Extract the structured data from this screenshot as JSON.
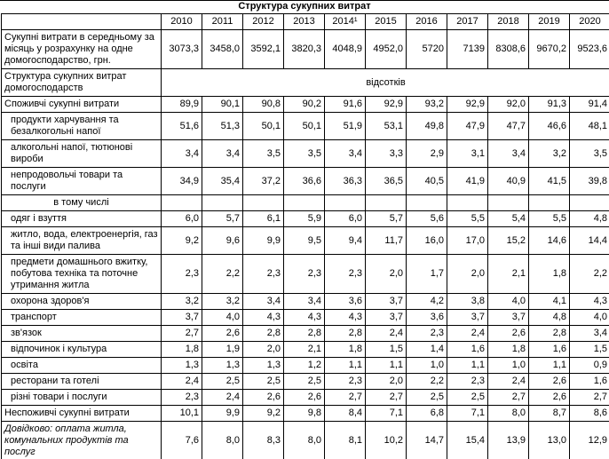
{
  "title": "Структура сукупних витрат",
  "table": {
    "corner_label": "",
    "years": [
      "2010",
      "2011",
      "2012",
      "2013",
      "2014¹",
      "2015",
      "2016",
      "2017",
      "2018",
      "2019",
      "2020"
    ],
    "rows": [
      {
        "label": "Сукупні витрати в середньому за місяць у розрахунку на одне домогосподарство, грн.",
        "label_style": "bold",
        "values": [
          "3073,3",
          "3458,0",
          "3592,1",
          "3820,3",
          "4048,9",
          "4952,0",
          "5720",
          "7139",
          "8308,6",
          "9670,2",
          "9523,6"
        ]
      },
      {
        "label": "Структура сукупних витрат домогосподарств",
        "label_style": "bold",
        "span_text": "відсотків"
      },
      {
        "label": "Споживчі сукупні витрати",
        "label_style": "normal",
        "values": [
          "89,9",
          "90,1",
          "90,8",
          "90,2",
          "91,6",
          "92,9",
          "93,2",
          "92,9",
          "92,0",
          "91,3",
          "91,4"
        ]
      },
      {
        "label": "продукти харчування та безалкогольні напої",
        "label_style": "indent",
        "values": [
          "51,6",
          "51,3",
          "50,1",
          "50,1",
          "51,9",
          "53,1",
          "49,8",
          "47,9",
          "47,7",
          "46,6",
          "48,1"
        ]
      },
      {
        "label": "алкогольні напої, тютюнові вироби",
        "label_style": "indent",
        "values": [
          "3,4",
          "3,4",
          "3,5",
          "3,5",
          "3,4",
          "3,3",
          "2,9",
          "3,1",
          "3,4",
          "3,2",
          "3,5"
        ]
      },
      {
        "label": "непродовольчі товари та послуги",
        "label_style": "indent",
        "values": [
          "34,9",
          "35,4",
          "37,2",
          "36,6",
          "36,3",
          "36,5",
          "40,5",
          "41,9",
          "40,9",
          "41,5",
          "39,8"
        ]
      },
      {
        "label": "в тому числі",
        "label_style": "center",
        "values": [
          "",
          "",
          "",
          "",
          "",
          "",
          "",
          "",
          "",
          "",
          ""
        ]
      },
      {
        "label": "одяг і взуття",
        "label_style": "indent",
        "values": [
          "6,0",
          "5,7",
          "6,1",
          "5,9",
          "6,0",
          "5,7",
          "5,6",
          "5,5",
          "5,4",
          "5,5",
          "4,8"
        ]
      },
      {
        "label": "житло, вода, електроенергія, газ та інші види палива",
        "label_style": "indent",
        "values": [
          "9,2",
          "9,6",
          "9,9",
          "9,5",
          "9,4",
          "11,7",
          "16,0",
          "17,0",
          "15,2",
          "14,6",
          "14,4"
        ]
      },
      {
        "label": "предмети домашнього вжитку, побутова техніка та поточне утримання житла",
        "label_style": "indent",
        "values": [
          "2,3",
          "2,2",
          "2,3",
          "2,3",
          "2,3",
          "2,0",
          "1,7",
          "2,0",
          "2,1",
          "1,8",
          "2,2"
        ]
      },
      {
        "label": "охорона здоров'я",
        "label_style": "indent",
        "values": [
          "3,2",
          "3,2",
          "3,4",
          "3,4",
          "3,6",
          "3,7",
          "4,2",
          "3,8",
          "4,0",
          "4,1",
          "4,3"
        ]
      },
      {
        "label": "транспорт",
        "label_style": "indent",
        "values": [
          "3,7",
          "4,0",
          "4,3",
          "4,3",
          "4,3",
          "3,7",
          "3,6",
          "3,7",
          "3,7",
          "4,8",
          "4,0"
        ]
      },
      {
        "label": "зв'язок",
        "label_style": "indent",
        "values": [
          "2,7",
          "2,6",
          "2,8",
          "2,8",
          "2,8",
          "2,4",
          "2,3",
          "2,4",
          "2,6",
          "2,8",
          "3,4"
        ]
      },
      {
        "label": "відпочинок і культура",
        "label_style": "indent",
        "values": [
          "1,8",
          "1,9",
          "2,0",
          "2,1",
          "1,8",
          "1,5",
          "1,4",
          "1,6",
          "1,8",
          "1,6",
          "1,5"
        ]
      },
      {
        "label": "освіта",
        "label_style": "indent",
        "values": [
          "1,3",
          "1,3",
          "1,3",
          "1,2",
          "1,1",
          "1,1",
          "1,0",
          "1,1",
          "1,0",
          "1,1",
          "0,9"
        ]
      },
      {
        "label": "ресторани та готелі",
        "label_style": "indent",
        "values": [
          "2,4",
          "2,5",
          "2,5",
          "2,5",
          "2,3",
          "2,0",
          "2,2",
          "2,3",
          "2,4",
          "2,6",
          "1,6"
        ]
      },
      {
        "label": "різні товари і послуги",
        "label_style": "indent",
        "values": [
          "2,3",
          "2,4",
          "2,6",
          "2,6",
          "2,7",
          "2,7",
          "2,5",
          "2,5",
          "2,7",
          "2,6",
          "2,7"
        ]
      },
      {
        "label": "Неспоживчі сукупні витрати",
        "label_style": "normal",
        "values": [
          "10,1",
          "9,9",
          "9,2",
          "9,8",
          "8,4",
          "7,1",
          "6,8",
          "7,1",
          "8,0",
          "8,7",
          "8,6"
        ]
      },
      {
        "label": "Довідково: оплата житла, комунальних продуктів та послуг",
        "label_style": "italic",
        "values": [
          "7,6",
          "8,0",
          "8,3",
          "8,0",
          "8,1",
          "10,2",
          "14,7",
          "15,4",
          "13,9",
          "13,0",
          "12,9"
        ]
      }
    ]
  }
}
